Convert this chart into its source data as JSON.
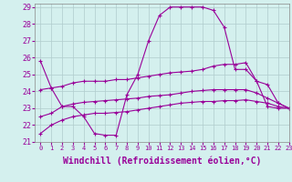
{
  "xlabel": "Windchill (Refroidissement éolien,°C)",
  "background_color": "#d4f0ee",
  "line_color": "#990099",
  "grid_color": "#b0cccc",
  "xlim": [
    -0.5,
    23
  ],
  "ylim": [
    21,
    29.2
  ],
  "yticks": [
    21,
    22,
    23,
    24,
    25,
    26,
    27,
    28,
    29
  ],
  "xticks": [
    0,
    1,
    2,
    3,
    4,
    5,
    6,
    7,
    8,
    9,
    10,
    11,
    12,
    13,
    14,
    15,
    16,
    17,
    18,
    19,
    20,
    21,
    22,
    23
  ],
  "series": [
    [
      25.8,
      24.2,
      23.1,
      23.1,
      22.5,
      21.5,
      21.4,
      21.4,
      23.8,
      25.0,
      27.0,
      28.5,
      29.0,
      29.0,
      29.0,
      29.0,
      28.8,
      27.8,
      25.3,
      25.3,
      24.6,
      23.1,
      23.0,
      23.0
    ],
    [
      24.1,
      24.2,
      24.3,
      24.5,
      24.6,
      24.6,
      24.6,
      24.7,
      24.7,
      24.8,
      24.9,
      25.0,
      25.1,
      25.15,
      25.2,
      25.3,
      25.5,
      25.6,
      25.6,
      25.7,
      24.6,
      24.4,
      23.3,
      23.0
    ],
    [
      22.5,
      22.7,
      23.1,
      23.25,
      23.35,
      23.4,
      23.45,
      23.5,
      23.55,
      23.6,
      23.7,
      23.75,
      23.8,
      23.9,
      24.0,
      24.05,
      24.1,
      24.1,
      24.1,
      24.1,
      23.9,
      23.6,
      23.3,
      23.0
    ],
    [
      21.5,
      22.0,
      22.3,
      22.5,
      22.6,
      22.7,
      22.7,
      22.75,
      22.8,
      22.9,
      23.0,
      23.1,
      23.2,
      23.3,
      23.35,
      23.4,
      23.4,
      23.45,
      23.45,
      23.5,
      23.4,
      23.3,
      23.1,
      23.0
    ]
  ],
  "xlabel_fontsize": 7,
  "xtick_fontsize": 5,
  "ytick_fontsize": 6
}
